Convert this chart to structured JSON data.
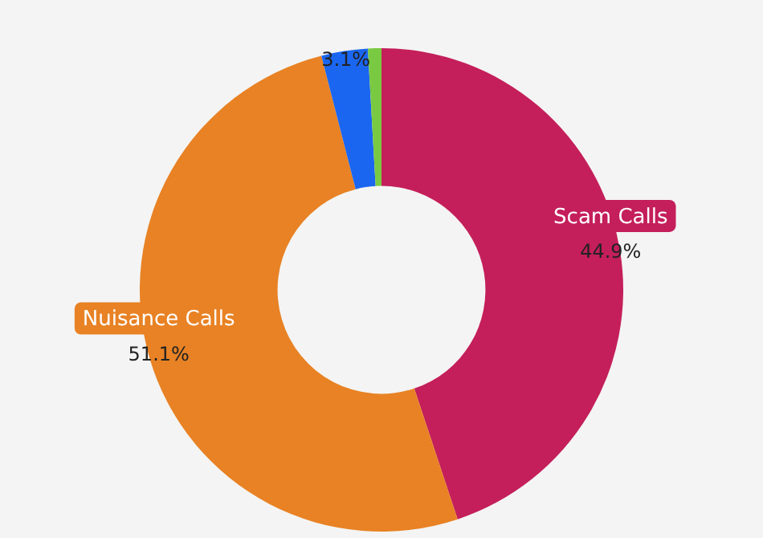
{
  "chart_data": {
    "type": "donut",
    "categories": [
      "Scam Calls",
      "Nuisance Calls",
      null,
      null
    ],
    "values": [
      44.9,
      51.1,
      3.1,
      0.9
    ],
    "colors": [
      "#c41f5a",
      "#e88224",
      "#1a66f0",
      "#7ac943"
    ],
    "value_labels": [
      "44.9%",
      "51.1%",
      "3.1%",
      null
    ],
    "legend": false
  }
}
